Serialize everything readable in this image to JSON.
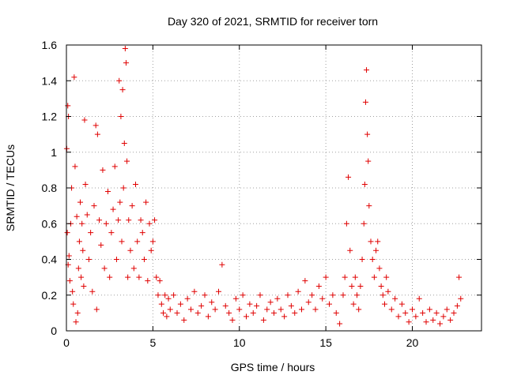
{
  "chart_data": {
    "type": "scatter",
    "title": "Day 320 of 2021, SRMTID for receiver torn",
    "xlabel": "GPS time / hours",
    "ylabel": "SRMTID / TECUs",
    "xlim": [
      0,
      24
    ],
    "ylim": [
      0,
      1.6
    ],
    "xticks": [
      0,
      5,
      10,
      15,
      20
    ],
    "yticks": [
      0,
      0.2,
      0.4,
      0.6,
      0.8,
      1,
      1.2,
      1.4,
      1.6
    ],
    "xtick_labels": [
      "0",
      "5",
      "10",
      "15",
      "20"
    ],
    "ytick_labels": [
      "0",
      "0.2",
      "0.4",
      "0.6",
      "0.8",
      "1",
      "1.2",
      "1.4",
      "1.6"
    ],
    "grid": true,
    "marker": "+",
    "color": "#e00000",
    "series": [
      {
        "name": "SRMTID",
        "points": [
          [
            0.02,
            1.02
          ],
          [
            0.05,
            0.55
          ],
          [
            0.08,
            1.26
          ],
          [
            0.1,
            0.37
          ],
          [
            0.12,
            1.2
          ],
          [
            0.15,
            0.42
          ],
          [
            0.2,
            0.28
          ],
          [
            0.25,
            0.6
          ],
          [
            0.3,
            0.8
          ],
          [
            0.35,
            0.22
          ],
          [
            0.4,
            0.15
          ],
          [
            0.45,
            1.42
          ],
          [
            0.5,
            0.92
          ],
          [
            0.55,
            0.05
          ],
          [
            0.6,
            0.64
          ],
          [
            0.65,
            0.1
          ],
          [
            0.7,
            0.35
          ],
          [
            0.75,
            0.5
          ],
          [
            0.8,
            0.72
          ],
          [
            0.85,
            0.3
          ],
          [
            0.9,
            0.6
          ],
          [
            0.95,
            0.45
          ],
          [
            1.0,
            0.25
          ],
          [
            1.05,
            1.18
          ],
          [
            1.1,
            0.82
          ],
          [
            1.2,
            0.65
          ],
          [
            1.3,
            0.4
          ],
          [
            1.4,
            0.55
          ],
          [
            1.5,
            0.22
          ],
          [
            1.6,
            0.7
          ],
          [
            1.7,
            1.15
          ],
          [
            1.75,
            0.12
          ],
          [
            1.8,
            1.1
          ],
          [
            1.9,
            0.62
          ],
          [
            2.0,
            0.48
          ],
          [
            2.1,
            0.9
          ],
          [
            2.2,
            0.35
          ],
          [
            2.3,
            0.6
          ],
          [
            2.4,
            0.78
          ],
          [
            2.5,
            0.3
          ],
          [
            2.6,
            0.55
          ],
          [
            2.7,
            0.68
          ],
          [
            2.8,
            0.92
          ],
          [
            2.9,
            0.4
          ],
          [
            3.0,
            0.62
          ],
          [
            3.05,
            1.4
          ],
          [
            3.1,
            0.72
          ],
          [
            3.15,
            1.2
          ],
          [
            3.2,
            0.5
          ],
          [
            3.25,
            1.35
          ],
          [
            3.3,
            0.8
          ],
          [
            3.35,
            1.05
          ],
          [
            3.4,
            1.58
          ],
          [
            3.45,
            1.5
          ],
          [
            3.5,
            0.95
          ],
          [
            3.55,
            0.3
          ],
          [
            3.6,
            0.62
          ],
          [
            3.7,
            0.45
          ],
          [
            3.8,
            0.7
          ],
          [
            3.9,
            0.35
          ],
          [
            4.0,
            0.82
          ],
          [
            4.1,
            0.5
          ],
          [
            4.2,
            0.3
          ],
          [
            4.3,
            0.62
          ],
          [
            4.4,
            0.55
          ],
          [
            4.5,
            0.4
          ],
          [
            4.6,
            0.72
          ],
          [
            4.7,
            0.28
          ],
          [
            4.8,
            0.6
          ],
          [
            4.9,
            0.45
          ],
          [
            5.0,
            0.5
          ],
          [
            5.1,
            0.62
          ],
          [
            5.2,
            0.3
          ],
          [
            5.3,
            0.2
          ],
          [
            5.4,
            0.28
          ],
          [
            5.5,
            0.15
          ],
          [
            5.6,
            0.1
          ],
          [
            5.7,
            0.2
          ],
          [
            5.8,
            0.08
          ],
          [
            5.9,
            0.18
          ],
          [
            6.0,
            0.12
          ],
          [
            6.2,
            0.2
          ],
          [
            6.4,
            0.1
          ],
          [
            6.6,
            0.15
          ],
          [
            6.8,
            0.06
          ],
          [
            7.0,
            0.18
          ],
          [
            7.2,
            0.12
          ],
          [
            7.4,
            0.22
          ],
          [
            7.6,
            0.1
          ],
          [
            7.8,
            0.14
          ],
          [
            8.0,
            0.2
          ],
          [
            8.2,
            0.08
          ],
          [
            8.4,
            0.16
          ],
          [
            8.6,
            0.12
          ],
          [
            8.8,
            0.22
          ],
          [
            9.0,
            0.37
          ],
          [
            9.2,
            0.14
          ],
          [
            9.4,
            0.1
          ],
          [
            9.6,
            0.06
          ],
          [
            9.8,
            0.18
          ],
          [
            10.0,
            0.12
          ],
          [
            10.2,
            0.2
          ],
          [
            10.4,
            0.08
          ],
          [
            10.6,
            0.15
          ],
          [
            10.8,
            0.1
          ],
          [
            11.0,
            0.14
          ],
          [
            11.2,
            0.2
          ],
          [
            11.4,
            0.06
          ],
          [
            11.6,
            0.12
          ],
          [
            11.8,
            0.16
          ],
          [
            12.0,
            0.1
          ],
          [
            12.2,
            0.18
          ],
          [
            12.4,
            0.12
          ],
          [
            12.6,
            0.08
          ],
          [
            12.8,
            0.2
          ],
          [
            13.0,
            0.14
          ],
          [
            13.2,
            0.1
          ],
          [
            13.4,
            0.22
          ],
          [
            13.6,
            0.12
          ],
          [
            13.8,
            0.28
          ],
          [
            14.0,
            0.16
          ],
          [
            14.2,
            0.2
          ],
          [
            14.4,
            0.12
          ],
          [
            14.6,
            0.25
          ],
          [
            14.8,
            0.18
          ],
          [
            15.0,
            0.3
          ],
          [
            15.2,
            0.15
          ],
          [
            15.4,
            0.2
          ],
          [
            15.6,
            0.1
          ],
          [
            15.8,
            0.04
          ],
          [
            16.0,
            0.2
          ],
          [
            16.1,
            0.3
          ],
          [
            16.2,
            0.6
          ],
          [
            16.3,
            0.86
          ],
          [
            16.4,
            0.45
          ],
          [
            16.5,
            0.25
          ],
          [
            16.6,
            0.15
          ],
          [
            16.7,
            0.3
          ],
          [
            16.8,
            0.2
          ],
          [
            16.9,
            0.12
          ],
          [
            17.0,
            0.25
          ],
          [
            17.1,
            0.4
          ],
          [
            17.2,
            0.6
          ],
          [
            17.25,
            0.82
          ],
          [
            17.3,
            1.28
          ],
          [
            17.35,
            1.46
          ],
          [
            17.4,
            1.1
          ],
          [
            17.45,
            0.95
          ],
          [
            17.5,
            0.7
          ],
          [
            17.6,
            0.5
          ],
          [
            17.7,
            0.4
          ],
          [
            17.8,
            0.3
          ],
          [
            17.9,
            0.45
          ],
          [
            18.0,
            0.5
          ],
          [
            18.1,
            0.35
          ],
          [
            18.2,
            0.25
          ],
          [
            18.3,
            0.2
          ],
          [
            18.4,
            0.15
          ],
          [
            18.5,
            0.3
          ],
          [
            18.6,
            0.22
          ],
          [
            18.8,
            0.12
          ],
          [
            19.0,
            0.18
          ],
          [
            19.2,
            0.08
          ],
          [
            19.4,
            0.15
          ],
          [
            19.6,
            0.1
          ],
          [
            19.8,
            0.05
          ],
          [
            20.0,
            0.12
          ],
          [
            20.2,
            0.08
          ],
          [
            20.4,
            0.18
          ],
          [
            20.6,
            0.1
          ],
          [
            20.8,
            0.05
          ],
          [
            21.0,
            0.12
          ],
          [
            21.2,
            0.06
          ],
          [
            21.4,
            0.1
          ],
          [
            21.6,
            0.04
          ],
          [
            21.8,
            0.08
          ],
          [
            22.0,
            0.12
          ],
          [
            22.2,
            0.06
          ],
          [
            22.4,
            0.1
          ],
          [
            22.6,
            0.14
          ],
          [
            22.7,
            0.3
          ],
          [
            22.8,
            0.18
          ]
        ]
      }
    ]
  }
}
